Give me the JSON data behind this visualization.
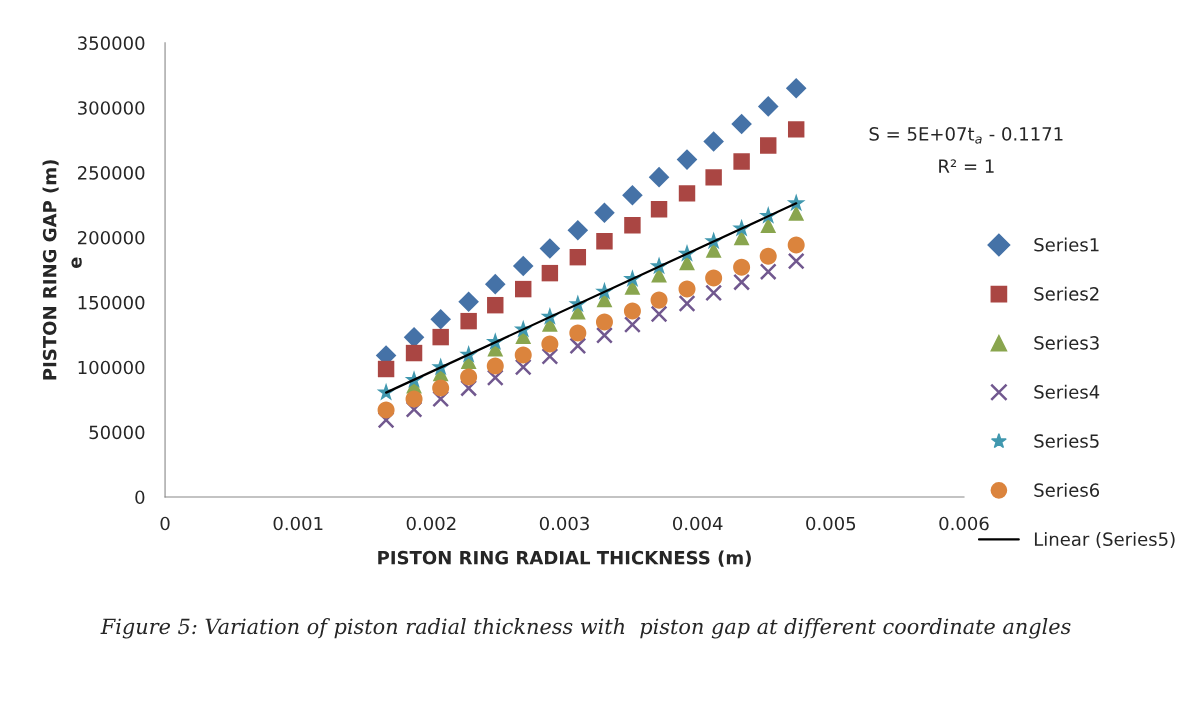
{
  "chart_data": {
    "type": "scatter",
    "xlabel": "PISTON RING RADIAL THICKNESS (m)",
    "ylabel": "PISTON RING GAP (m)",
    "x": [
      0.00166,
      0.00187,
      0.00207,
      0.00228,
      0.00248,
      0.00269,
      0.00289,
      0.0031,
      0.0033,
      0.00351,
      0.00371,
      0.00392,
      0.00412,
      0.00433,
      0.00453,
      0.00474
    ],
    "series": [
      {
        "name": "Series1",
        "color": "#4572a7",
        "marker": "diamond",
        "values": [
          109000,
          123000,
          137000,
          150500,
          164000,
          178000,
          191500,
          205500,
          219000,
          232500,
          246500,
          260000,
          274000,
          287500,
          301000,
          315000
        ]
      },
      {
        "name": "Series2",
        "color": "#aa4643",
        "marker": "square",
        "values": [
          98600,
          110900,
          123200,
          135500,
          147800,
          160200,
          172500,
          184800,
          197100,
          209400,
          221700,
          234000,
          246300,
          258600,
          270900,
          283300
        ]
      },
      {
        "name": "Series3",
        "color": "#89a54e",
        "marker": "triangle",
        "values": [
          null,
          85800,
          95300,
          104800,
          114400,
          123900,
          133400,
          142900,
          152400,
          161900,
          171400,
          180900,
          190500,
          200000,
          209500,
          219000
        ]
      },
      {
        "name": "Series4",
        "color": "#71588f",
        "marker": "cross",
        "values": [
          59300,
          67500,
          75600,
          83800,
          92000,
          100100,
          108300,
          116500,
          124600,
          132800,
          141000,
          149100,
          157300,
          165500,
          173600,
          181800
        ]
      },
      {
        "name": "Series5",
        "color": "#4198af",
        "marker": "star",
        "values": [
          80400,
          90100,
          99900,
          109600,
          119300,
          129000,
          138800,
          148500,
          158200,
          167900,
          177700,
          187400,
          197100,
          206800,
          216600,
          226300
        ]
      },
      {
        "name": "Series6",
        "color": "#db843d",
        "marker": "circle",
        "values": [
          67000,
          75500,
          83900,
          92400,
          100900,
          109400,
          117800,
          126300,
          134800,
          143300,
          151700,
          160200,
          168700,
          177100,
          185600,
          194100
        ]
      },
      {
        "name": "Linear (Series5)",
        "type": "line",
        "color": "#000000",
        "marker": "none",
        "line_style": "solid",
        "x": [
          0.00166,
          0.00474
        ],
        "values": [
          80400,
          226300
        ]
      }
    ],
    "xlim": [
      0,
      0.006
    ],
    "xticks": [
      0,
      0.001,
      0.002,
      0.003,
      0.004,
      0.005,
      0.006
    ],
    "ylim": [
      0,
      350000
    ],
    "yticks": [
      0,
      50000,
      100000,
      150000,
      200000,
      250000,
      300000,
      350000
    ],
    "grid": false,
    "legend": "right",
    "annotations": [
      "S = 5E+07t$_{a}$ - 0.1171",
      "R² = 1",
      "e",
      "Figure 5: Variation of piston radial thickness with  piston gap at different coordinate angles"
    ]
  }
}
